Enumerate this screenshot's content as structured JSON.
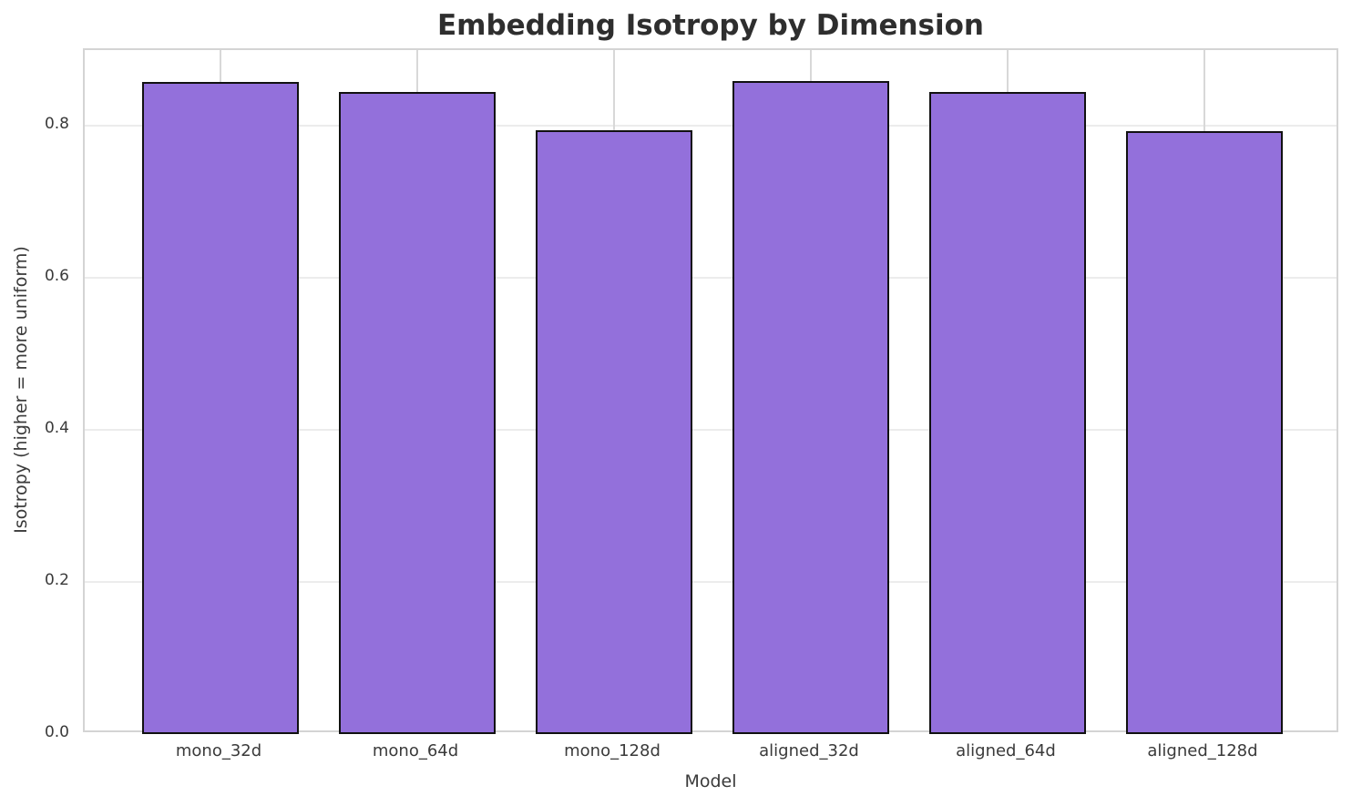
{
  "chart_data": {
    "type": "bar",
    "title": "Embedding Isotropy by Dimension",
    "xlabel": "Model",
    "ylabel": "Isotropy (higher = more uniform)",
    "categories": [
      "mono_32d",
      "mono_64d",
      "mono_128d",
      "aligned_32d",
      "aligned_64d",
      "aligned_128d"
    ],
    "values": [
      0.858,
      0.845,
      0.794,
      0.859,
      0.845,
      0.793
    ],
    "ylim": [
      0.0,
      0.9
    ],
    "yticks": [
      0.0,
      0.2,
      0.4,
      0.6,
      0.8
    ],
    "grid": "both",
    "legend": "none",
    "bar_color": "#9370DB",
    "bar_edge_color": "#111111",
    "grid_color_h": "#ececec",
    "grid_color_v": "#d8d8d8",
    "spine_color": "#d4d4d4",
    "title_color": "#2e2e2e",
    "tick_label_color": "#3a3a3a"
  }
}
